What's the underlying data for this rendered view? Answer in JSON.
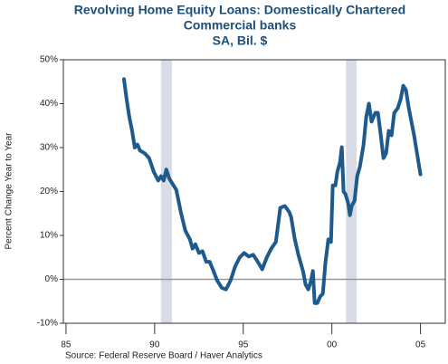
{
  "chart_data": {
    "type": "line",
    "title": "Revolving Home Equity Loans: Domestically Chartered",
    "subtitle": "Commercial banks",
    "subtitle2": "SA, Bil. $",
    "y_label": "Percent Change Year to Year",
    "source": "Source: Federal Reserve Board / Haver Analytics",
    "x": [
      1988.27,
      1988.42,
      1988.57,
      1988.72,
      1988.88,
      1989.03,
      1989.18,
      1989.44,
      1989.69,
      1989.95,
      1990.2,
      1990.36,
      1990.51,
      1990.66,
      1990.82,
      1990.97,
      1991.22,
      1991.48,
      1991.73,
      1991.99,
      1992.14,
      1992.3,
      1992.5,
      1992.7,
      1992.91,
      1993.11,
      1993.32,
      1993.52,
      1993.78,
      1994.03,
      1994.29,
      1994.54,
      1994.8,
      1995.05,
      1995.31,
      1995.56,
      1995.82,
      1996.07,
      1996.33,
      1996.58,
      1996.84,
      1997.09,
      1997.35,
      1997.6,
      1997.7,
      1997.91,
      1998.11,
      1998.37,
      1998.52,
      1998.67,
      1998.83,
      1998.93,
      1999.03,
      1999.18,
      1999.34,
      1999.49,
      1999.64,
      1999.8,
      1999.95,
      2000.05,
      2000.2,
      2000.31,
      2000.46,
      2000.56,
      2000.66,
      2000.77,
      2000.92,
      2001.02,
      2001.12,
      2001.28,
      2001.43,
      2001.58,
      2001.79,
      2001.94,
      2002.09,
      2002.24,
      2002.45,
      2002.6,
      2002.76,
      2002.91,
      2003.06,
      2003.21,
      2003.37,
      2003.52,
      2003.72,
      2003.88,
      2004.03,
      2004.18,
      2004.34,
      2004.49,
      2004.64,
      2004.85,
      2005.0
    ],
    "series": [
      {
        "name": "Revolving Home Equity Loans",
        "color": "#1f5a8c",
        "values": [
          45.6,
          41,
          37,
          34,
          30,
          30.7,
          29.3,
          28.7,
          27.6,
          24.5,
          22.5,
          23.5,
          22.5,
          25,
          23,
          22,
          20.4,
          15.3,
          11.1,
          9.1,
          7,
          8,
          6,
          6.4,
          4,
          4,
          1.9,
          -0.2,
          -1.9,
          -2.3,
          -0.2,
          2.9,
          5,
          6,
          5.2,
          5.6,
          4,
          2.3,
          5,
          7,
          8.5,
          16.3,
          16.7,
          15.3,
          14.2,
          9.1,
          5.6,
          1.9,
          -1.2,
          -2.3,
          -0.2,
          1.9,
          -5.4,
          -5.4,
          -3.9,
          -3.3,
          3.9,
          9.1,
          8.5,
          21.4,
          21.4,
          24.5,
          26.6,
          30.1,
          20,
          19.4,
          17.3,
          14.6,
          16.7,
          17.9,
          23.5,
          25.6,
          30.7,
          37,
          40,
          35.9,
          37.9,
          37.9,
          32.8,
          27.6,
          28.7,
          33.8,
          32.8,
          37.9,
          39,
          41,
          44.1,
          43.1,
          39,
          35.9,
          32.8,
          27.6,
          23.9
        ]
      }
    ],
    "shaded_periods": [
      [
        1990.36,
        1990.97
      ],
      [
        2000.8,
        2001.4
      ]
    ],
    "xlim": [
      1984.85,
      2006.4
    ],
    "ylim": [
      -10,
      50
    ],
    "xticks": [
      {
        "value": 1985,
        "label": "85"
      },
      {
        "value": 1990,
        "label": "90"
      },
      {
        "value": 1995,
        "label": "95"
      },
      {
        "value": 2000,
        "label": "00"
      },
      {
        "value": 2005,
        "label": "05"
      }
    ],
    "yticks": [
      {
        "value": -10,
        "label": "-10%"
      },
      {
        "value": 0,
        "label": "0%"
      },
      {
        "value": 10,
        "label": "10%"
      },
      {
        "value": 20,
        "label": "20%"
      },
      {
        "value": 30,
        "label": "30%"
      },
      {
        "value": 40,
        "label": "40%"
      },
      {
        "value": 50,
        "label": "50%"
      }
    ]
  }
}
